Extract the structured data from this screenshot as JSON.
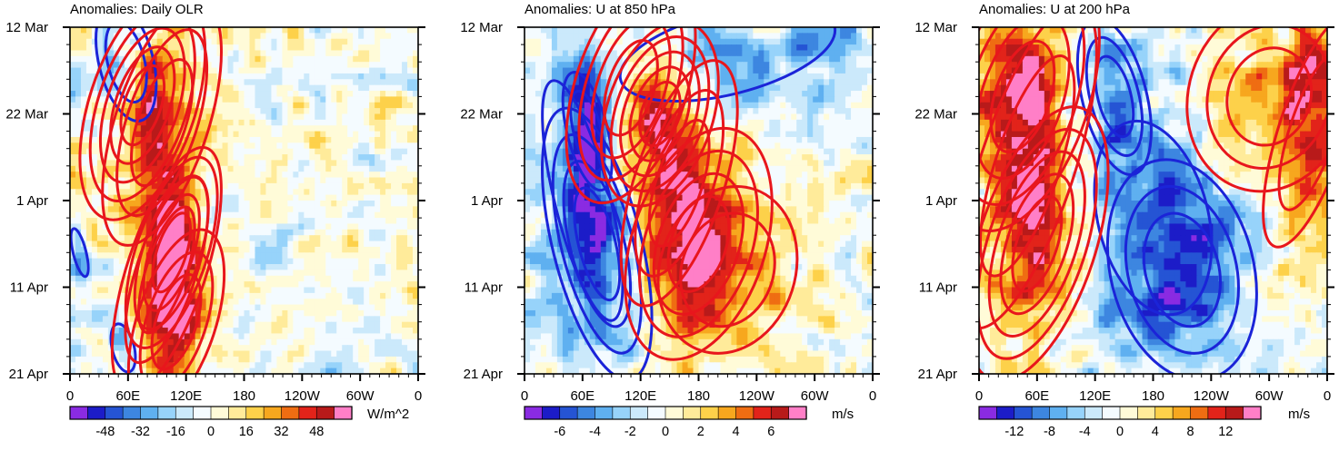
{
  "chart_data": [
    {
      "type": "heatmap",
      "title": "Anomalies: Daily OLR",
      "xlabel": "",
      "ylabel": "",
      "x_ticks": [
        "0",
        "60E",
        "120E",
        "180",
        "120W",
        "60W",
        "0"
      ],
      "y_ticks": [
        "12 Mar",
        "22 Mar",
        "1 Apr",
        "11 Apr",
        "21 Apr"
      ],
      "xlim": [
        0,
        360
      ],
      "colorbar": {
        "labels": [
          "-48",
          "-32",
          "-16",
          "0",
          "16",
          "32",
          "48"
        ],
        "units": "W/m^2",
        "min": -64,
        "max": 64,
        "step": 8
      },
      "contours": {
        "red": [
          {
            "lon": 75,
            "day": 9,
            "sx": 20,
            "sy": 5,
            "level": 5
          },
          {
            "lon": 95,
            "day": 11,
            "sx": 26,
            "sy": 8,
            "level": 3
          },
          {
            "lon": 100,
            "day": 28,
            "sx": 22,
            "sy": 8,
            "level": 3
          },
          {
            "lon": 105,
            "day": 26,
            "sx": 16,
            "sy": 5,
            "level": 4
          },
          {
            "lon": 110,
            "day": 34,
            "sx": 22,
            "sy": 6,
            "level": 3
          }
        ],
        "blue": [
          {
            "lon": 58,
            "day": 4,
            "sx": 20,
            "sy": 5,
            "level": 2
          },
          {
            "lon": 10,
            "day": 26,
            "sx": 7,
            "sy": 3,
            "level": 1
          },
          {
            "lon": 55,
            "day": 37,
            "sx": 12,
            "sy": 3,
            "level": 1
          }
        ]
      }
    },
    {
      "type": "heatmap",
      "title": "Anomalies: U at 850 hPa",
      "xlabel": "",
      "ylabel": "",
      "x_ticks": [
        "0",
        "60E",
        "120E",
        "180",
        "120W",
        "60W",
        "0"
      ],
      "y_ticks": [
        "12 Mar",
        "22 Mar",
        "1 Apr",
        "11 Apr",
        "21 Apr"
      ],
      "xlim": [
        0,
        360
      ],
      "colorbar": {
        "labels": [
          "-6",
          "-4",
          "-2",
          "0",
          "2",
          "4",
          "6"
        ],
        "units": "m/s",
        "min": -8,
        "max": 8,
        "step": 1
      },
      "contours": {
        "red": [
          {
            "lon": 110,
            "day": 7,
            "sx": 25,
            "sy": 6,
            "level": 4
          },
          {
            "lon": 140,
            "day": 10,
            "sx": 20,
            "sy": 4,
            "level": 5
          },
          {
            "lon": 160,
            "day": 18,
            "sx": 25,
            "sy": 8,
            "level": 3
          },
          {
            "lon": 180,
            "day": 25,
            "sx": 30,
            "sy": 6,
            "level": 4
          },
          {
            "lon": 210,
            "day": 28,
            "sx": 50,
            "sy": 7,
            "level": 2
          }
        ],
        "blue": [
          {
            "lon": 75,
            "day": 25,
            "sx": 20,
            "sy": 7,
            "level": 4
          },
          {
            "lon": 65,
            "day": 12,
            "sx": 15,
            "sy": 5,
            "level": 2
          },
          {
            "lon": 60,
            "day": 20,
            "sx": 30,
            "sy": 15,
            "level": 1
          },
          {
            "lon": 210,
            "day": 3,
            "sx": 120,
            "sy": 5,
            "level": 1
          }
        ]
      }
    },
    {
      "type": "heatmap",
      "title": "Anomalies: U at 200 hPa",
      "xlabel": "",
      "ylabel": "",
      "x_ticks": [
        "0",
        "60E",
        "120E",
        "180",
        "120W",
        "60W",
        "0"
      ],
      "y_ticks": [
        "12 Mar",
        "22 Mar",
        "1 Apr",
        "11 Apr",
        "21 Apr"
      ],
      "xlim": [
        0,
        360
      ],
      "colorbar": {
        "labels": [
          "-12",
          "-8",
          "-4",
          "0",
          "4",
          "8",
          "12"
        ],
        "units": "m/s",
        "min": -16,
        "max": 16,
        "step": 2
      },
      "contours": {
        "red": [
          {
            "lon": 45,
            "day": 8,
            "sx": 30,
            "sy": 7,
            "level": 4
          },
          {
            "lon": 60,
            "day": 25,
            "sx": 22,
            "sy": 6,
            "level": 5
          },
          {
            "lon": 50,
            "day": 16,
            "sx": 35,
            "sy": 14,
            "level": 2
          },
          {
            "lon": 300,
            "day": 8,
            "sx": 45,
            "sy": 6,
            "level": 3
          },
          {
            "lon": 345,
            "day": 12,
            "sx": 25,
            "sy": 10,
            "level": 2
          }
        ],
        "blue": [
          {
            "lon": 140,
            "day": 8,
            "sx": 18,
            "sy": 5,
            "level": 3
          },
          {
            "lon": 210,
            "day": 28,
            "sx": 40,
            "sy": 7,
            "level": 3
          },
          {
            "lon": 180,
            "day": 22,
            "sx": 60,
            "sy": 12,
            "level": 1
          }
        ]
      }
    }
  ]
}
